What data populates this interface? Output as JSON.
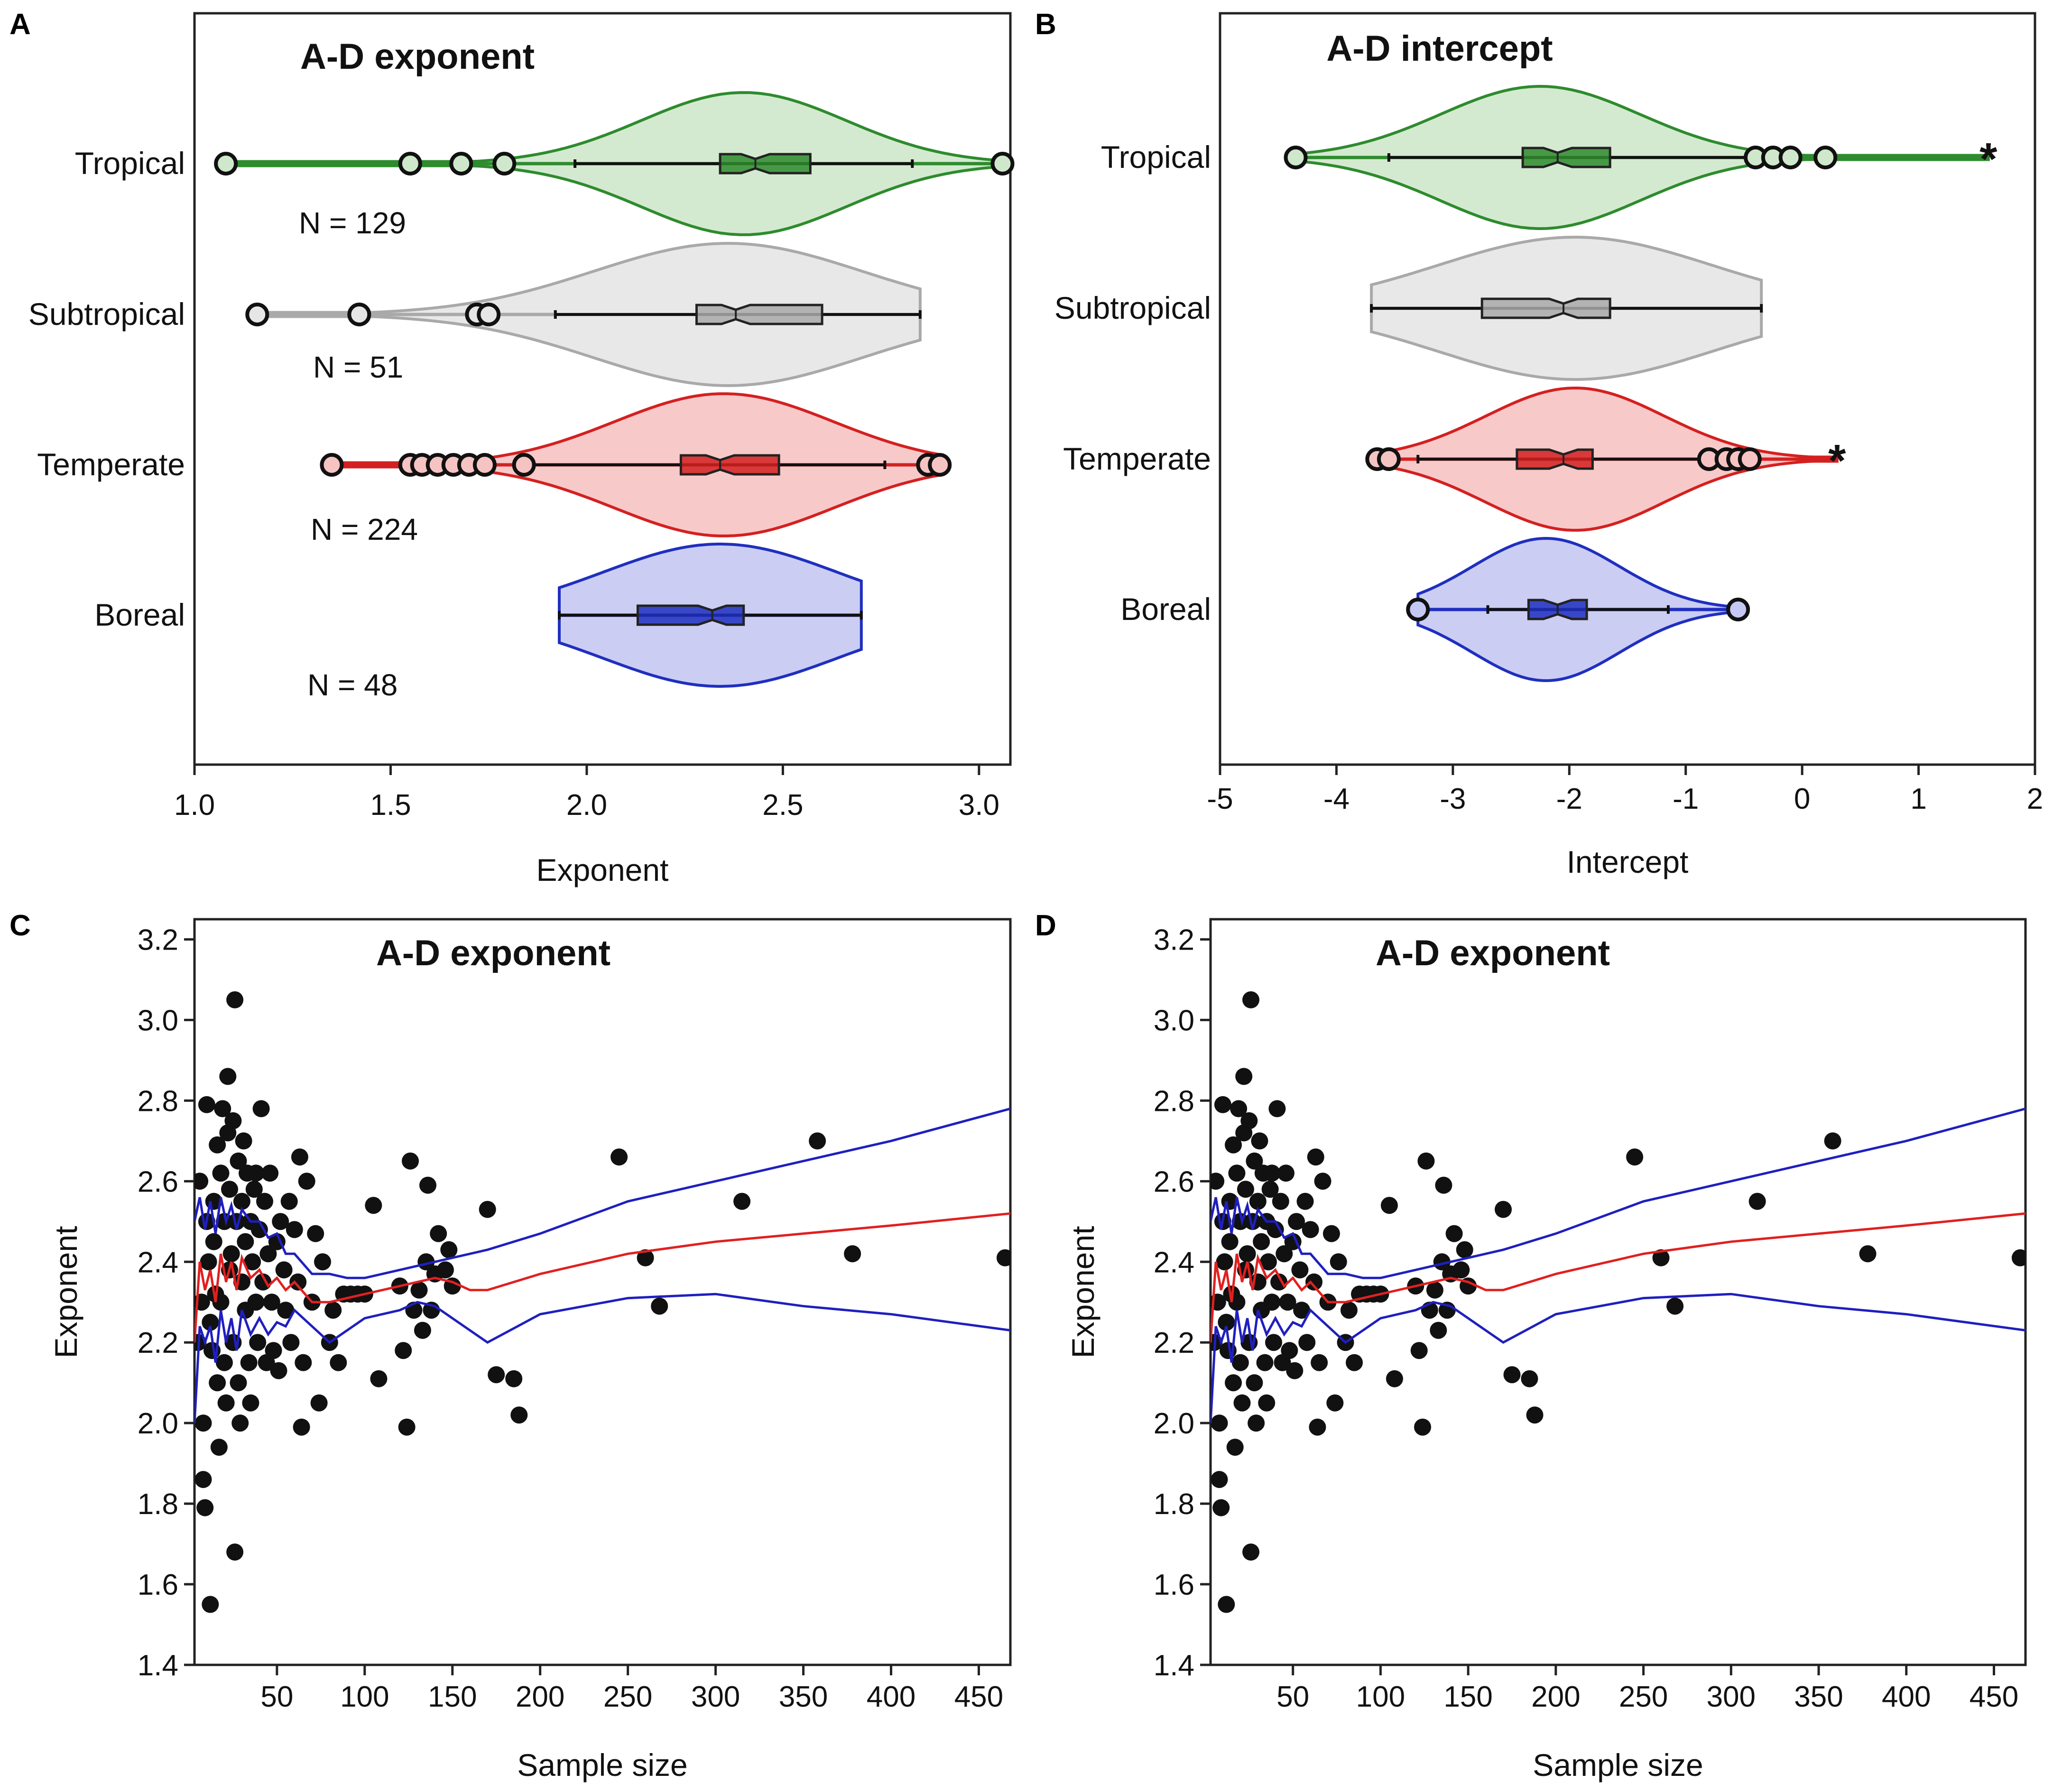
{
  "chart_data": [
    {
      "panel": "A",
      "type": "violin",
      "title": "A-D exponent",
      "xlabel": "Exponent",
      "xlim": [
        1.0,
        3.08
      ],
      "xticks": [
        "1.0",
        "1.5",
        "2.0",
        "2.5",
        "3.0"
      ],
      "groups": [
        {
          "name": "Tropical",
          "n_label": "N = 129",
          "color": "#2e8b2e",
          "fill": "#cfe8cb",
          "min": 1.08,
          "max": 3.06,
          "whisker_lo": 1.97,
          "whisker_hi": 2.83,
          "q1": 2.34,
          "median": 2.43,
          "q3": 2.57,
          "peak": 2.4,
          "outliers": [
            1.08,
            1.55,
            1.68,
            1.79,
            3.06
          ]
        },
        {
          "name": "Subtropical",
          "n_label": "N = 51",
          "color": "#a9a9a9",
          "fill": "#e6e6e6",
          "min": 1.16,
          "max": 2.85,
          "whisker_lo": 1.92,
          "whisker_hi": 2.85,
          "q1": 2.28,
          "median": 2.38,
          "q3": 2.6,
          "peak": 2.36,
          "outliers": [
            1.16,
            1.42,
            1.72,
            1.75
          ]
        },
        {
          "name": "Temperate",
          "n_label": "N = 224",
          "color": "#d42020",
          "fill": "#f6c3c3",
          "min": 1.35,
          "max": 2.9,
          "whisker_lo": 1.86,
          "whisker_hi": 2.76,
          "q1": 2.24,
          "median": 2.34,
          "q3": 2.49,
          "peak": 2.35,
          "outliers": [
            1.35,
            1.55,
            1.58,
            1.62,
            1.66,
            1.7,
            1.74,
            1.84,
            2.87,
            2.9
          ]
        },
        {
          "name": "Boreal",
          "n_label": "N = 48",
          "color": "#1f2fbf",
          "fill": "#c5c8f2",
          "min": 1.93,
          "max": 2.7,
          "whisker_lo": 1.93,
          "whisker_hi": 2.7,
          "q1": 2.13,
          "median": 2.32,
          "q3": 2.4,
          "peak": 2.34,
          "outliers": []
        }
      ]
    },
    {
      "panel": "B",
      "type": "violin",
      "title": "A-D intercept",
      "xlabel": "Intercept",
      "xlim": [
        -5,
        2
      ],
      "xticks": [
        "-5",
        "-4",
        "-3",
        "-2",
        "-1",
        "0",
        "1",
        "2"
      ],
      "groups": [
        {
          "name": "Tropical",
          "color": "#2e8b2e",
          "fill": "#cfe8cb",
          "min": -4.35,
          "max": 1.6,
          "whisker_lo": -3.55,
          "whisker_hi": -0.4,
          "q1": -2.4,
          "median": -2.1,
          "q3": -1.65,
          "peak": -2.25,
          "outliers": [
            -4.35,
            -0.4,
            -0.25,
            -0.1,
            0.2
          ],
          "extremes": [
            1.6
          ]
        },
        {
          "name": "Subtropical",
          "color": "#a9a9a9",
          "fill": "#e6e6e6",
          "min": -3.7,
          "max": -0.35,
          "whisker_lo": -3.7,
          "whisker_hi": -0.35,
          "q1": -2.75,
          "median": -2.05,
          "q3": -1.65,
          "peak": -1.95,
          "outliers": [],
          "extremes": []
        },
        {
          "name": "Temperate",
          "color": "#d42020",
          "fill": "#f6c3c3",
          "min": -3.65,
          "max": 0.3,
          "whisker_lo": -3.3,
          "whisker_hi": -0.85,
          "q1": -2.45,
          "median": -2.05,
          "q3": -1.8,
          "peak": -1.95,
          "outliers": [
            -3.65,
            -3.55,
            -0.8,
            -0.65,
            -0.55,
            -0.45
          ],
          "extremes": [
            0.3
          ]
        },
        {
          "name": "Boreal",
          "color": "#1f2fbf",
          "fill": "#c5c8f2",
          "min": -3.3,
          "max": -0.55,
          "whisker_lo": -2.7,
          "whisker_hi": -1.15,
          "q1": -2.35,
          "median": -2.1,
          "q3": -1.85,
          "peak": -2.2,
          "outliers": [
            -3.3,
            -0.55
          ],
          "extremes": []
        }
      ]
    },
    {
      "panel": "C",
      "type": "scatter",
      "title": "A-D exponent",
      "xlabel": "Sample size",
      "ylabel": "Exponent",
      "xlim": [
        3,
        468
      ],
      "ylim": [
        1.4,
        3.25
      ],
      "xticks": [
        "50",
        "100",
        "150",
        "200",
        "250",
        "300",
        "350",
        "400",
        "450"
      ],
      "yticks": [
        "1.4",
        "1.6",
        "1.8",
        "2.0",
        "2.2",
        "2.4",
        "2.6",
        "2.8",
        "3.0",
        "3.2"
      ],
      "points": [
        [
          5,
          2.2
        ],
        [
          6,
          2.6
        ],
        [
          7,
          2.3
        ],
        [
          8,
          2.0
        ],
        [
          8,
          1.86
        ],
        [
          9,
          1.79
        ],
        [
          10,
          2.5
        ],
        [
          10,
          2.79
        ],
        [
          11,
          2.4
        ],
        [
          12,
          2.25
        ],
        [
          12,
          1.55
        ],
        [
          13,
          2.18
        ],
        [
          14,
          2.45
        ],
        [
          14,
          2.55
        ],
        [
          15,
          2.32
        ],
        [
          16,
          2.69
        ],
        [
          16,
          2.1
        ],
        [
          17,
          1.94
        ],
        [
          18,
          2.62
        ],
        [
          18,
          2.3
        ],
        [
          19,
          2.78
        ],
        [
          20,
          2.15
        ],
        [
          20,
          2.5
        ],
        [
          21,
          2.05
        ],
        [
          22,
          2.72
        ],
        [
          22,
          2.86
        ],
        [
          23,
          2.58
        ],
        [
          23,
          2.38
        ],
        [
          24,
          2.42
        ],
        [
          25,
          2.75
        ],
        [
          25,
          2.2
        ],
        [
          26,
          3.05
        ],
        [
          26,
          1.68
        ],
        [
          27,
          2.5
        ],
        [
          28,
          2.65
        ],
        [
          28,
          2.1
        ],
        [
          29,
          2.0
        ],
        [
          30,
          2.35
        ],
        [
          30,
          2.55
        ],
        [
          31,
          2.7
        ],
        [
          32,
          2.28
        ],
        [
          32,
          2.45
        ],
        [
          33,
          2.62
        ],
        [
          34,
          2.15
        ],
        [
          35,
          2.5
        ],
        [
          35,
          2.05
        ],
        [
          36,
          2.4
        ],
        [
          37,
          2.58
        ],
        [
          38,
          2.3
        ],
        [
          38,
          2.62
        ],
        [
          39,
          2.2
        ],
        [
          40,
          2.48
        ],
        [
          41,
          2.78
        ],
        [
          42,
          2.35
        ],
        [
          43,
          2.55
        ],
        [
          44,
          2.15
        ],
        [
          45,
          2.42
        ],
        [
          46,
          2.62
        ],
        [
          47,
          2.3
        ],
        [
          48,
          2.18
        ],
        [
          50,
          2.45
        ],
        [
          51,
          2.13
        ],
        [
          52,
          2.5
        ],
        [
          54,
          2.38
        ],
        [
          55,
          2.28
        ],
        [
          57,
          2.55
        ],
        [
          58,
          2.2
        ],
        [
          60,
          2.48
        ],
        [
          62,
          2.35
        ],
        [
          63,
          2.66
        ],
        [
          64,
          1.99
        ],
        [
          65,
          2.15
        ],
        [
          67,
          2.6
        ],
        [
          70,
          2.3
        ],
        [
          72,
          2.47
        ],
        [
          74,
          2.05
        ],
        [
          76,
          2.4
        ],
        [
          80,
          2.2
        ],
        [
          82,
          2.28
        ],
        [
          85,
          2.15
        ],
        [
          88,
          2.32
        ],
        [
          92,
          2.32
        ],
        [
          96,
          2.32
        ],
        [
          100,
          2.32
        ],
        [
          105,
          2.54
        ],
        [
          108,
          2.11
        ],
        [
          120,
          2.34
        ],
        [
          122,
          2.18
        ],
        [
          124,
          1.99
        ],
        [
          126,
          2.65
        ],
        [
          128,
          2.28
        ],
        [
          131,
          2.33
        ],
        [
          133,
          2.23
        ],
        [
          135,
          2.4
        ],
        [
          136,
          2.59
        ],
        [
          138,
          2.28
        ],
        [
          140,
          2.37
        ],
        [
          142,
          2.47
        ],
        [
          146,
          2.38
        ],
        [
          148,
          2.43
        ],
        [
          150,
          2.34
        ],
        [
          170,
          2.53
        ],
        [
          175,
          2.12
        ],
        [
          185,
          2.11
        ],
        [
          188,
          2.02
        ],
        [
          245,
          2.66
        ],
        [
          260,
          2.41
        ],
        [
          268,
          2.29
        ],
        [
          315,
          2.55
        ],
        [
          358,
          2.7
        ],
        [
          378,
          2.42
        ],
        [
          465,
          2.41
        ]
      ],
      "mean_line": [
        [
          3,
          2.2
        ],
        [
          6,
          2.4
        ],
        [
          9,
          2.33
        ],
        [
          12,
          2.38
        ],
        [
          15,
          2.3
        ],
        [
          18,
          2.42
        ],
        [
          21,
          2.35
        ],
        [
          24,
          2.4
        ],
        [
          27,
          2.33
        ],
        [
          30,
          2.41
        ],
        [
          35,
          2.36
        ],
        [
          40,
          2.38
        ],
        [
          45,
          2.34
        ],
        [
          50,
          2.36
        ],
        [
          55,
          2.33
        ],
        [
          60,
          2.35
        ],
        [
          70,
          2.3
        ],
        [
          80,
          2.3
        ],
        [
          90,
          2.31
        ],
        [
          100,
          2.32
        ],
        [
          110,
          2.33
        ],
        [
          120,
          2.34
        ],
        [
          130,
          2.35
        ],
        [
          140,
          2.36
        ],
        [
          150,
          2.35
        ],
        [
          160,
          2.33
        ],
        [
          170,
          2.33
        ],
        [
          200,
          2.37
        ],
        [
          250,
          2.42
        ],
        [
          300,
          2.45
        ],
        [
          350,
          2.47
        ],
        [
          400,
          2.49
        ],
        [
          468,
          2.52
        ]
      ],
      "upper_band": [
        [
          3,
          2.5
        ],
        [
          6,
          2.56
        ],
        [
          9,
          2.48
        ],
        [
          12,
          2.55
        ],
        [
          15,
          2.47
        ],
        [
          18,
          2.56
        ],
        [
          21,
          2.5
        ],
        [
          24,
          2.54
        ],
        [
          27,
          2.48
        ],
        [
          30,
          2.53
        ],
        [
          35,
          2.5
        ],
        [
          40,
          2.5
        ],
        [
          45,
          2.46
        ],
        [
          50,
          2.47
        ],
        [
          55,
          2.42
        ],
        [
          60,
          2.42
        ],
        [
          70,
          2.37
        ],
        [
          80,
          2.37
        ],
        [
          90,
          2.36
        ],
        [
          100,
          2.36
        ],
        [
          110,
          2.37
        ],
        [
          120,
          2.38
        ],
        [
          130,
          2.39
        ],
        [
          140,
          2.4
        ],
        [
          150,
          2.41
        ],
        [
          170,
          2.43
        ],
        [
          200,
          2.47
        ],
        [
          250,
          2.55
        ],
        [
          300,
          2.6
        ],
        [
          350,
          2.65
        ],
        [
          400,
          2.7
        ],
        [
          468,
          2.78
        ]
      ],
      "lower_band": [
        [
          3,
          2.0
        ],
        [
          6,
          2.24
        ],
        [
          9,
          2.2
        ],
        [
          12,
          2.24
        ],
        [
          15,
          2.15
        ],
        [
          18,
          2.28
        ],
        [
          21,
          2.2
        ],
        [
          24,
          2.26
        ],
        [
          27,
          2.18
        ],
        [
          30,
          2.28
        ],
        [
          35,
          2.22
        ],
        [
          40,
          2.26
        ],
        [
          45,
          2.22
        ],
        [
          50,
          2.25
        ],
        [
          55,
          2.24
        ],
        [
          60,
          2.28
        ],
        [
          70,
          2.24
        ],
        [
          80,
          2.2
        ],
        [
          90,
          2.23
        ],
        [
          100,
          2.26
        ],
        [
          110,
          2.27
        ],
        [
          120,
          2.28
        ],
        [
          130,
          2.3
        ],
        [
          140,
          2.29
        ],
        [
          150,
          2.26
        ],
        [
          170,
          2.2
        ],
        [
          200,
          2.27
        ],
        [
          250,
          2.31
        ],
        [
          300,
          2.32
        ],
        [
          350,
          2.29
        ],
        [
          400,
          2.27
        ],
        [
          468,
          2.23
        ]
      ],
      "mean_color": "#e02020",
      "band_color": "#1f1fbf"
    },
    {
      "panel": "D",
      "type": "scatter",
      "title": "A-D exponent",
      "xlabel": "Sample size",
      "ylabel": "Exponent",
      "xlim": [
        3,
        468
      ],
      "ylim": [
        1.4,
        3.25
      ],
      "xticks": [
        "50",
        "100",
        "150",
        "200",
        "250",
        "300",
        "350",
        "400",
        "450"
      ],
      "yticks": [
        "1.4",
        "1.6",
        "1.8",
        "2.0",
        "2.2",
        "2.4",
        "2.6",
        "2.8",
        "3.0",
        "3.2"
      ],
      "same_as_panel": "C"
    }
  ]
}
